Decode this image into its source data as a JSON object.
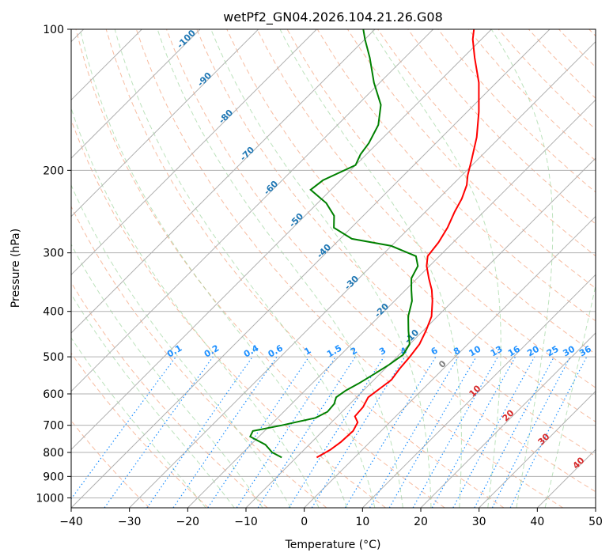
{
  "chart_data": {
    "type": "line",
    "subtype": "skew-t log-p diagram",
    "title": "wetPf2_GN04.2026.104.21.26.G08",
    "xlabel": "Temperature (°C)",
    "ylabel": "Pressure (hPa)",
    "xlim": [
      -40,
      50
    ],
    "ylim": [
      1050,
      100
    ],
    "x_ticks": [
      -40,
      -30,
      -20,
      -10,
      0,
      10,
      20,
      30,
      40,
      50
    ],
    "y_ticks": [
      100,
      200,
      300,
      400,
      500,
      600,
      700,
      800,
      900,
      1000
    ],
    "series": [
      {
        "name": "Temperature",
        "color": "#ff0000",
        "points": [
          {
            "p": 820,
            "t": -6.5
          },
          {
            "p": 790,
            "t": -5.5
          },
          {
            "p": 760,
            "t": -5.0
          },
          {
            "p": 720,
            "t": -4.8
          },
          {
            "p": 690,
            "t": -5.5
          },
          {
            "p": 670,
            "t": -7.0
          },
          {
            "p": 640,
            "t": -7.2
          },
          {
            "p": 610,
            "t": -8.0
          },
          {
            "p": 585,
            "t": -7.5
          },
          {
            "p": 560,
            "t": -7.0
          },
          {
            "p": 530,
            "t": -7.5
          },
          {
            "p": 500,
            "t": -7.8
          },
          {
            "p": 470,
            "t": -8.3
          },
          {
            "p": 440,
            "t": -9.5
          },
          {
            "p": 410,
            "t": -11.0
          },
          {
            "p": 380,
            "t": -13.5
          },
          {
            "p": 360,
            "t": -15.5
          },
          {
            "p": 340,
            "t": -18.0
          },
          {
            "p": 320,
            "t": -20.5
          },
          {
            "p": 305,
            "t": -22.0
          },
          {
            "p": 285,
            "t": -22.5
          },
          {
            "p": 265,
            "t": -23.5
          },
          {
            "p": 245,
            "t": -25.0
          },
          {
            "p": 230,
            "t": -26.0
          },
          {
            "p": 215,
            "t": -27.5
          },
          {
            "p": 205,
            "t": -29.0
          },
          {
            "p": 190,
            "t": -31.0
          },
          {
            "p": 170,
            "t": -34.0
          },
          {
            "p": 150,
            "t": -38.0
          },
          {
            "p": 130,
            "t": -43.0
          },
          {
            "p": 115,
            "t": -48.0
          },
          {
            "p": 105,
            "t": -51.5
          },
          {
            "p": 100,
            "t": -53.0
          }
        ]
      },
      {
        "name": "Dewpoint",
        "color": "#008000",
        "points": [
          {
            "p": 820,
            "t": -12.5
          },
          {
            "p": 800,
            "t": -15.0
          },
          {
            "p": 770,
            "t": -17.5
          },
          {
            "p": 740,
            "t": -21.5
          },
          {
            "p": 720,
            "t": -22.0
          },
          {
            "p": 700,
            "t": -18.0
          },
          {
            "p": 675,
            "t": -13.5
          },
          {
            "p": 655,
            "t": -12.5
          },
          {
            "p": 630,
            "t": -12.7
          },
          {
            "p": 610,
            "t": -13.5
          },
          {
            "p": 590,
            "t": -13.0
          },
          {
            "p": 570,
            "t": -12.0
          },
          {
            "p": 545,
            "t": -11.0
          },
          {
            "p": 520,
            "t": -10.0
          },
          {
            "p": 495,
            "t": -9.3
          },
          {
            "p": 470,
            "t": -10.0
          },
          {
            "p": 440,
            "t": -12.5
          },
          {
            "p": 410,
            "t": -15.0
          },
          {
            "p": 380,
            "t": -17.0
          },
          {
            "p": 360,
            "t": -19.0
          },
          {
            "p": 340,
            "t": -21.0
          },
          {
            "p": 320,
            "t": -22.0
          },
          {
            "p": 305,
            "t": -24.0
          },
          {
            "p": 290,
            "t": -30.0
          },
          {
            "p": 280,
            "t": -38.0
          },
          {
            "p": 265,
            "t": -43.0
          },
          {
            "p": 250,
            "t": -45.0
          },
          {
            "p": 235,
            "t": -48.5
          },
          {
            "p": 220,
            "t": -53.5
          },
          {
            "p": 210,
            "t": -53.0
          },
          {
            "p": 195,
            "t": -50.0
          },
          {
            "p": 185,
            "t": -51.0
          },
          {
            "p": 175,
            "t": -51.5
          },
          {
            "p": 160,
            "t": -53.0
          },
          {
            "p": 145,
            "t": -56.0
          },
          {
            "p": 130,
            "t": -61.0
          },
          {
            "p": 115,
            "t": -66.0
          },
          {
            "p": 105,
            "t": -70.0
          },
          {
            "p": 100,
            "t": -72.0
          }
        ]
      }
    ],
    "mixing_ratio_lines": {
      "values": [
        0.1,
        0.2,
        0.4,
        0.6,
        1,
        1.5,
        2,
        3,
        4,
        6,
        8,
        10,
        13,
        16,
        20,
        25,
        30,
        36
      ],
      "labels": [
        "0.1",
        "0.2",
        "0.4",
        "0.6",
        "1",
        "1.5",
        "2",
        "3",
        "4",
        "6",
        "8",
        "10",
        "13",
        "16",
        "20",
        "25",
        "30",
        "36"
      ],
      "label_pressure": 500,
      "color": "#1e90ff"
    },
    "isotherm_labels": [
      {
        "text": "-100",
        "value": -100,
        "color": "#1f77b4"
      },
      {
        "text": "-90",
        "value": -90,
        "color": "#1f77b4"
      },
      {
        "text": "-80",
        "value": -80,
        "color": "#1f77b4"
      },
      {
        "text": "-70",
        "value": -70,
        "color": "#1f77b4"
      },
      {
        "text": "-60",
        "value": -60,
        "color": "#1f77b4"
      },
      {
        "text": "-50",
        "value": -50,
        "color": "#1f77b4"
      },
      {
        "text": "-40",
        "value": -40,
        "color": "#1f77b4"
      },
      {
        "text": "-30",
        "value": -30,
        "color": "#1f77b4"
      },
      {
        "text": "-20",
        "value": -20,
        "color": "#1f77b4"
      },
      {
        "text": "-10",
        "value": -10,
        "color": "#1f77b4"
      },
      {
        "text": "0",
        "value": 0,
        "color": "#808080"
      },
      {
        "text": "10",
        "value": 10,
        "color": "#d62728"
      },
      {
        "text": "20",
        "value": 20,
        "color": "#d62728"
      },
      {
        "text": "30",
        "value": 30,
        "color": "#d62728"
      },
      {
        "text": "40",
        "value": 40,
        "color": "#d62728"
      }
    ],
    "background": {
      "isotherms": "solid gray, every 10 °C",
      "dry_adiabats": "dashed light red",
      "moist_adiabats": "dashed light green",
      "mixing_ratio": "dotted blue"
    }
  }
}
